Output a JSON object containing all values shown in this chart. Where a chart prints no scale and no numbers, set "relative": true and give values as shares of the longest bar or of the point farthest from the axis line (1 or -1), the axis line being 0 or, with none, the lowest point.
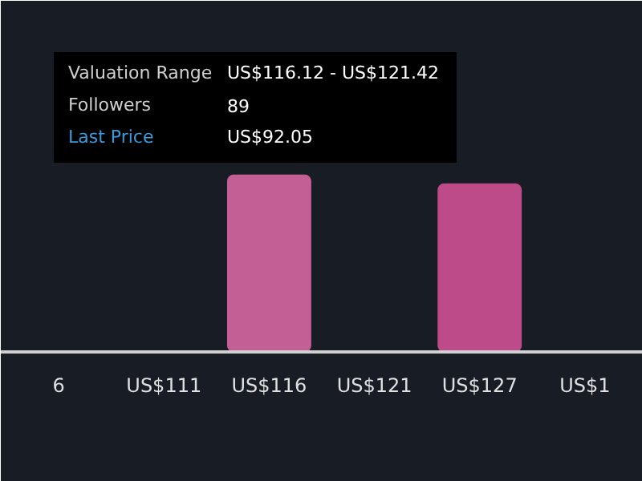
{
  "chart_data": {
    "type": "bar",
    "relative": true,
    "categories": [
      "6",
      "US$111",
      "US$116",
      "US$121",
      "US$127",
      "US$1"
    ],
    "series": [
      {
        "colors": [
          "#c45f96",
          "#c45f96",
          "#c45f96",
          "#c45f96",
          "#bd4b89",
          "#c45f96"
        ],
        "values": [
          0,
          0,
          1,
          0,
          0.95,
          0
        ]
      }
    ],
    "annotations": [
      "Valuation Range",
      "US$116.12 - US$121.42",
      "Followers",
      "89",
      "Last Price",
      "US$92.05"
    ]
  }
}
